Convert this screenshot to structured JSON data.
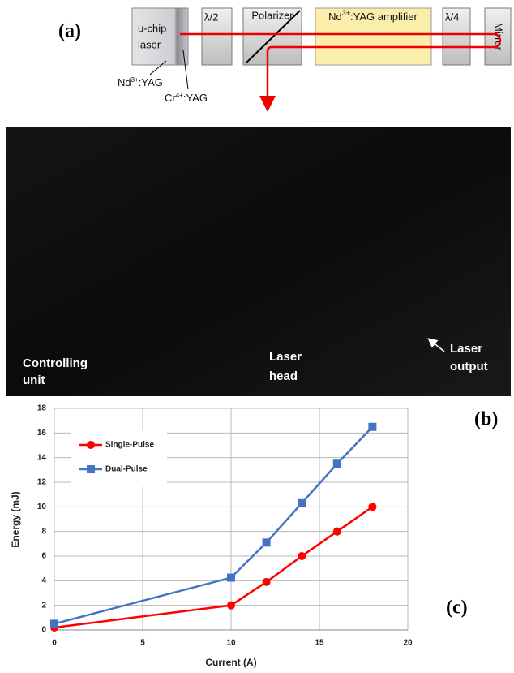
{
  "diagram": {
    "label": "(a)",
    "laser": {
      "line1": "u-chip",
      "line2": "laser"
    },
    "half_wave": "λ/2",
    "polarizer": "Polarizer",
    "amplifier": {
      "base": "Nd",
      "sup": "3+",
      "rest": ":YAG amplifier"
    },
    "quarter_wave": "λ/4",
    "mirror": "Mirror",
    "nd_yag": {
      "base": "Nd",
      "sup": "3+",
      "rest": ":YAG"
    },
    "cr_yag": {
      "base": "Cr",
      "sup": "4+",
      "rest": ":YAG"
    }
  },
  "photo": {
    "label": "(b)",
    "controlling_unit": [
      "Controlling",
      "unit"
    ],
    "laser_head": [
      "Laser",
      "head"
    ],
    "laser_output": [
      "Laser",
      "output"
    ]
  },
  "chart_data": {
    "type": "line",
    "panel_label": "(c)",
    "x_label": "Current (A)",
    "y_label": "Energy (mJ)",
    "x": [
      0,
      10,
      12,
      14,
      16,
      18
    ],
    "series": [
      {
        "name": "Single-Pulse",
        "color": "#ff0000",
        "marker": "circle",
        "values": [
          0.2,
          2,
          3.9,
          6,
          8,
          10
        ]
      },
      {
        "name": "Dual-Pulse",
        "color": "#4472c4",
        "marker": "square",
        "values": [
          0.5,
          4.25,
          7.1,
          10.3,
          13.5,
          16.5
        ]
      }
    ],
    "xlim": [
      0,
      20
    ],
    "xticks": [
      0,
      5,
      10,
      15,
      20
    ],
    "ylim": [
      0,
      18
    ],
    "yticks": [
      0,
      2,
      4,
      6,
      8,
      10,
      12,
      14,
      16,
      18
    ],
    "grid": true,
    "legend": "upper left"
  }
}
